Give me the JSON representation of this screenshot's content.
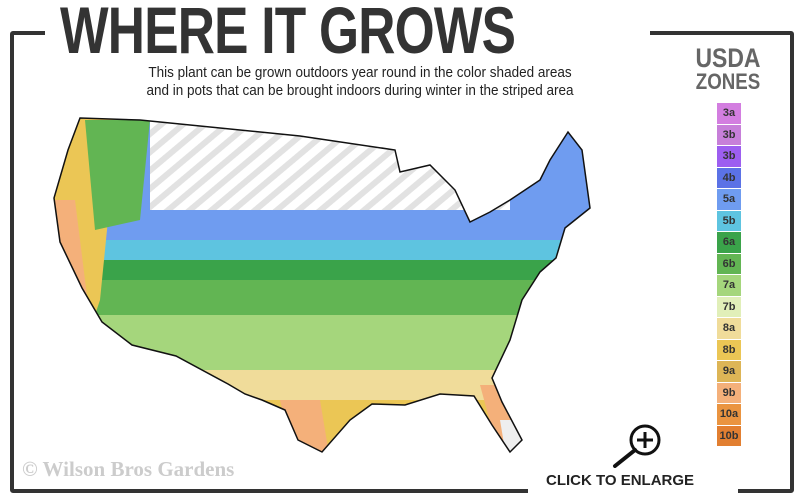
{
  "header": {
    "title": "WHERE IT GROWS",
    "subtitle_line1": "This plant can be grown outdoors year round in the color shaded areas",
    "subtitle_line2": "and in pots that can be brought indoors during winter in the striped area"
  },
  "legend": {
    "title_line1": "USDA",
    "title_line2": "ZONES",
    "zones": [
      {
        "label": "3a",
        "color": "#d37ee0"
      },
      {
        "label": "3b",
        "color": "#c77fd9"
      },
      {
        "label": "3b",
        "color": "#9d5ef0"
      },
      {
        "label": "4b",
        "color": "#5b72e6"
      },
      {
        "label": "5a",
        "color": "#6f9cf0"
      },
      {
        "label": "5b",
        "color": "#5ec4e0"
      },
      {
        "label": "6a",
        "color": "#3aa34a"
      },
      {
        "label": "6b",
        "color": "#62b553"
      },
      {
        "label": "7a",
        "color": "#a5d67c"
      },
      {
        "label": "7b",
        "color": "#e1efb9"
      },
      {
        "label": "8a",
        "color": "#f0dc9a"
      },
      {
        "label": "8b",
        "color": "#ebc655"
      },
      {
        "label": "9a",
        "color": "#ddb556"
      },
      {
        "label": "9b",
        "color": "#f4b07a"
      },
      {
        "label": "10a",
        "color": "#ea9440"
      },
      {
        "label": "10b",
        "color": "#e27f31"
      }
    ]
  },
  "watermark": "© Wilson Bros Gardens",
  "enlarge": {
    "label": "CLICK TO ENLARGE",
    "icon": "zoom-in-icon"
  }
}
